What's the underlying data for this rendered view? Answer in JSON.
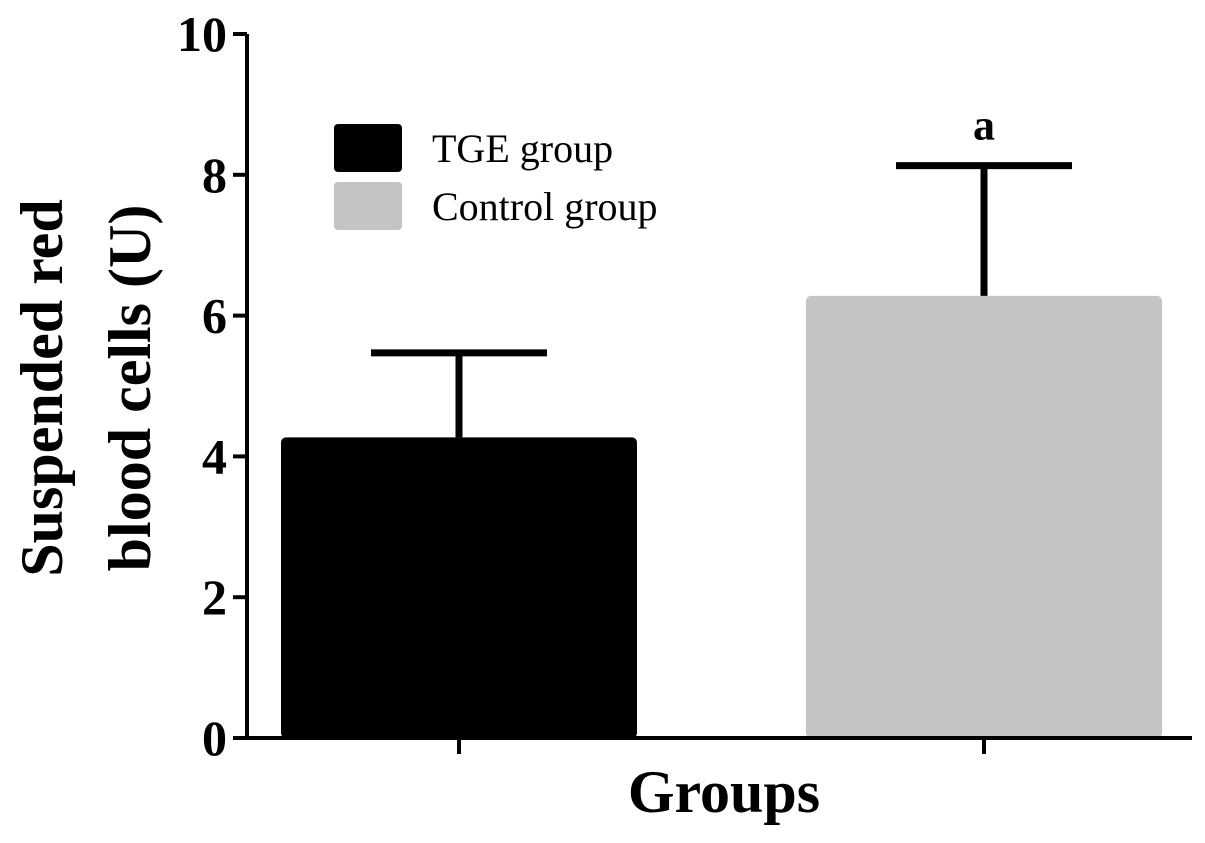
{
  "chart_data": {
    "type": "bar",
    "categories": [
      "TGE group",
      "Control group"
    ],
    "values": [
      4.27,
      6.28
    ],
    "errors": [
      1.2,
      1.85
    ],
    "colors": [
      "#000000",
      "#c4c4c4"
    ],
    "ylabel_line1": "Suspended red",
    "ylabel_line2": "blood cells (U)",
    "xlabel": "Groups",
    "ylim": [
      0,
      10
    ],
    "yticks": [
      "0",
      "2",
      "4",
      "6",
      "8",
      "10"
    ],
    "annotations": [
      {
        "category": "Control group",
        "text": "a"
      }
    ],
    "legend_position": "top-left",
    "grid": false
  }
}
